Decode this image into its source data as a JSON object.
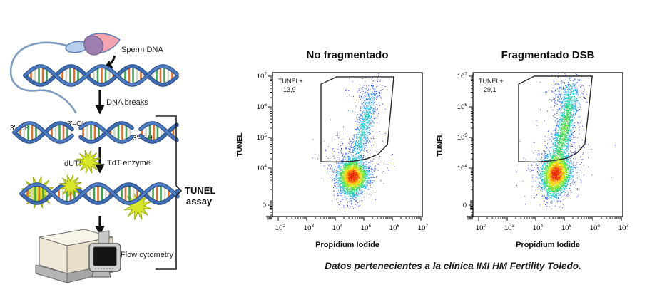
{
  "caption": "Datos pertenecientes a la clínica IMI HM Fertility Toledo.",
  "diagram": {
    "labels": {
      "sperm_dna": "Sperm DNA",
      "dna_breaks": "DNA breaks",
      "oh_1": "3'–OH",
      "oh_2": "3'–OH",
      "oh_3": "3'–OH",
      "dutp": "dUTP",
      "tdt": "TdT enzyme",
      "flow": "Flow cytometry",
      "assay_line1": "TUNEL",
      "assay_line2": "assay"
    }
  },
  "render_hints": {
    "palette": [
      {
        "t": 0.9,
        "c": "#e31b0c"
      },
      {
        "t": 0.78,
        "c": "#ff5500"
      },
      {
        "t": 0.64,
        "c": "#ffaf02"
      },
      {
        "t": 0.5,
        "c": "#f3ec1e"
      },
      {
        "t": 0.34,
        "c": "#7fe32a"
      },
      {
        "t": 0.22,
        "c": "#2ed45c"
      },
      {
        "t": 0.14,
        "c": "#1ec9c0"
      },
      {
        "t": 0.08,
        "c": "#1da7f0"
      },
      {
        "t": 0.035,
        "c": "#2c66f2"
      },
      {
        "t": 0.0,
        "c": "#2b3ce0"
      }
    ],
    "frame_color": "#111111",
    "gate_color": "#2a2a2a"
  },
  "chart_data": [
    {
      "type": "scatter",
      "subtype": "flow-cytometry-density",
      "title": "No fragmentado",
      "xlabel": "Propidium Iodide",
      "ylabel": "TUNEL",
      "xscale": "log (biexponential)",
      "yscale": "log (biexponential)",
      "xlim_log10": [
        1.8,
        7.05
      ],
      "ylim_log10": [
        2.4,
        7.1
      ],
      "xticks": [
        {
          "label": "10^2",
          "v": 2
        },
        {
          "label": "10^3",
          "v": 3
        },
        {
          "label": "10^4",
          "v": 4
        },
        {
          "label": "10^5",
          "v": 5
        },
        {
          "label": "10^6",
          "v": 6
        },
        {
          "label": "10^7",
          "v": 7
        }
      ],
      "yticks": [
        {
          "label": "10^7",
          "v": 7
        },
        {
          "label": "10^6",
          "v": 6
        },
        {
          "label": "10^5",
          "v": 5
        },
        {
          "label": "10^4",
          "v": 4
        },
        {
          "label": "0",
          "v": 2.79
        }
      ],
      "gate": {
        "label": "TUNEL+",
        "value": "13,9",
        "polygon_log10": [
          [
            3.5,
            4.21
          ],
          [
            3.5,
            6.74
          ],
          [
            4.05,
            6.98
          ],
          [
            6.05,
            6.98
          ],
          [
            5.83,
            4.77
          ],
          [
            5.5,
            4.45
          ],
          [
            5.1,
            4.3
          ],
          [
            4.6,
            4.22
          ],
          [
            4.0,
            4.2
          ]
        ]
      },
      "seed": 7,
      "clusters": [
        {
          "name": "main-population",
          "cx": 4.62,
          "cy": 3.74,
          "sx": 0.27,
          "sy": 0.25,
          "rot": -18,
          "n": 2600
        },
        {
          "name": "lower-tail",
          "cx": 4.52,
          "cy": 3.3,
          "sx": 0.2,
          "sy": 0.28,
          "rot": -10,
          "n": 330
        },
        {
          "name": "tunel-positive-plume",
          "cx": 5.0,
          "cy": 5.3,
          "sx": 0.15,
          "sy": 0.75,
          "rot": -16,
          "n": 850
        },
        {
          "name": "plume-top",
          "cx": 5.15,
          "cy": 6.35,
          "sx": 0.28,
          "sy": 0.3,
          "rot": -10,
          "n": 130
        },
        {
          "name": "diffuse",
          "cx": 4.7,
          "cy": 4.25,
          "sx": 0.55,
          "sy": 0.5,
          "rot": 0,
          "n": 260
        }
      ]
    },
    {
      "type": "scatter",
      "subtype": "flow-cytometry-density",
      "title": "Fragmentado DSB",
      "xlabel": "Propidium Iodide",
      "ylabel": "TUNEL",
      "xscale": "log (biexponential)",
      "yscale": "log (biexponential)",
      "xlim_log10": [
        1.8,
        7.05
      ],
      "ylim_log10": [
        2.4,
        7.1
      ],
      "xticks": [
        {
          "label": "10^2",
          "v": 2
        },
        {
          "label": "10^3",
          "v": 3
        },
        {
          "label": "10^4",
          "v": 4
        },
        {
          "label": "10^5",
          "v": 5
        },
        {
          "label": "10^6",
          "v": 6
        },
        {
          "label": "10^7",
          "v": 7
        }
      ],
      "yticks": [
        {
          "label": "10^7",
          "v": 7
        },
        {
          "label": "10^6",
          "v": 6
        },
        {
          "label": "10^5",
          "v": 5
        },
        {
          "label": "10^4",
          "v": 4
        },
        {
          "label": "0",
          "v": 2.79
        }
      ],
      "gate": {
        "label": "TUNEL+",
        "value": "29,1",
        "polygon_log10": [
          [
            3.4,
            4.21
          ],
          [
            3.4,
            6.74
          ],
          [
            3.95,
            7.0
          ],
          [
            5.98,
            7.0
          ],
          [
            5.72,
            4.78
          ],
          [
            5.45,
            4.5
          ],
          [
            5.08,
            4.32
          ],
          [
            4.6,
            4.24
          ],
          [
            4.0,
            4.2
          ]
        ]
      },
      "seed": 13,
      "clusters": [
        {
          "name": "main-population",
          "cx": 4.72,
          "cy": 3.82,
          "sx": 0.26,
          "sy": 0.3,
          "rot": -15,
          "n": 2450
        },
        {
          "name": "lower-tail",
          "cx": 4.6,
          "cy": 3.35,
          "sx": 0.2,
          "sy": 0.26,
          "rot": -10,
          "n": 300
        },
        {
          "name": "tunel-positive-plume",
          "cx": 5.0,
          "cy": 5.25,
          "sx": 0.16,
          "sy": 0.78,
          "rot": -13,
          "n": 1500
        },
        {
          "name": "plume-top",
          "cx": 5.05,
          "cy": 6.4,
          "sx": 0.3,
          "sy": 0.32,
          "rot": -10,
          "n": 280
        },
        {
          "name": "diffuse",
          "cx": 4.65,
          "cy": 4.2,
          "sx": 0.55,
          "sy": 0.55,
          "rot": 0,
          "n": 320
        }
      ]
    }
  ]
}
